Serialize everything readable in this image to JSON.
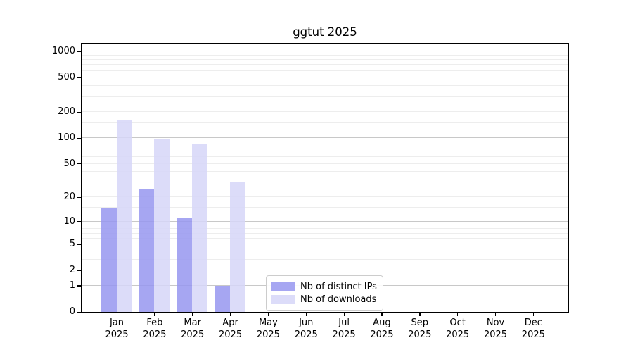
{
  "title": "ggtut 2025",
  "chart_data": {
    "type": "bar",
    "title": "ggtut 2025",
    "scale": "log1p",
    "xlabel": "",
    "ylabel": "",
    "categories": [
      "Jan",
      "Feb",
      "Mar",
      "Apr",
      "May",
      "Jun",
      "Jul",
      "Aug",
      "Sep",
      "Oct",
      "Nov",
      "Dec"
    ],
    "year_label": "2025",
    "series": [
      {
        "name": "Nb of distinct IPs",
        "color": "#a6a6f2",
        "bar_fill": "rgba(150,150,240,0.85)",
        "values": [
          15,
          25,
          11,
          1,
          0,
          0,
          0,
          0,
          0,
          0,
          0,
          0
        ]
      },
      {
        "name": "Nb of downloads",
        "color": "#dcdcf9",
        "bar_fill": "rgba(214,214,248,0.85)",
        "values": [
          160,
          97,
          85,
          30,
          0,
          0,
          0,
          0,
          0,
          0,
          0,
          0
        ]
      }
    ],
    "y_ticks": [
      0,
      1,
      2,
      5,
      10,
      20,
      50,
      100,
      200,
      500,
      1000
    ],
    "y_major_gridlines": [
      1,
      10,
      100,
      1000
    ],
    "y_minor_gridlines": [
      2,
      3,
      4,
      5,
      6,
      7,
      8,
      9,
      15,
      20,
      30,
      40,
      50,
      60,
      70,
      80,
      90,
      150,
      200,
      300,
      400,
      500,
      600,
      700,
      800,
      900
    ],
    "ylim": [
      0,
      1150
    ],
    "grid": true,
    "legend_position": "lower center-right inside plot"
  },
  "colors": {
    "background": "#ffffff",
    "axis": "#000000",
    "grid_major": "#c8c8c8",
    "grid_minor": "#ededed",
    "legend_border": "#cccccc",
    "text": "#000000"
  }
}
